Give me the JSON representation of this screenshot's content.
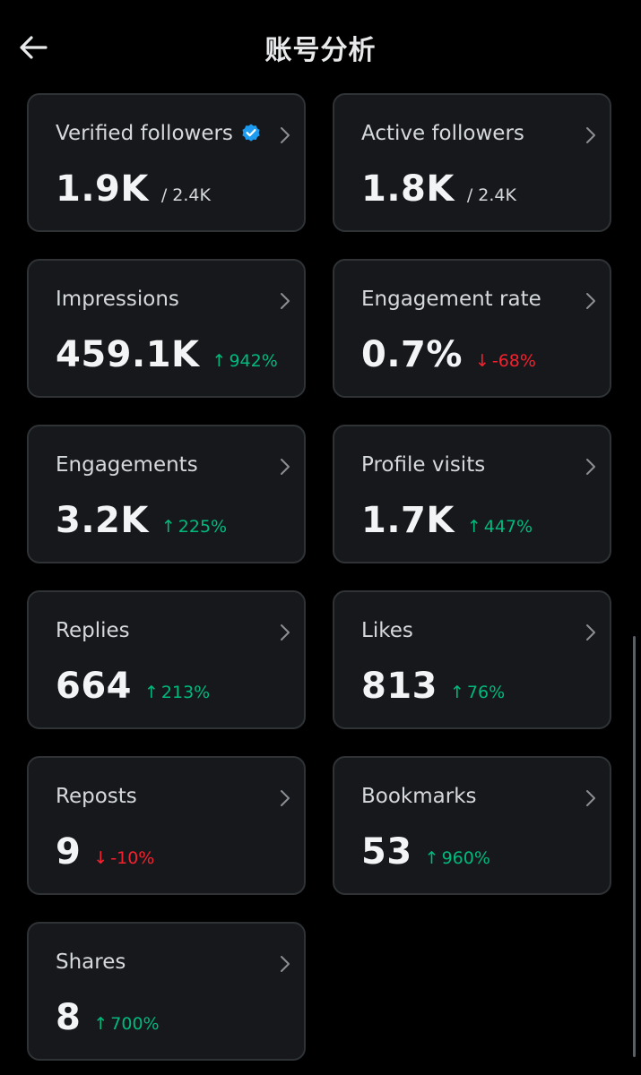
{
  "header": {
    "title": "账号分析",
    "back_icon": "arrow-left-icon"
  },
  "colors": {
    "background": "#000000",
    "card": "#16181c",
    "card_border": "#2f3336",
    "up": "#00ba7c",
    "down": "#f4212e",
    "verified": "#1d9bf0"
  },
  "cards": [
    {
      "label": "Verified followers",
      "value": "1.9K",
      "sub": "/ 2.4K",
      "verified_icon": "verified-badge-icon"
    },
    {
      "label": "Active followers",
      "value": "1.8K",
      "sub": "/ 2.4K"
    },
    {
      "label": "Impressions",
      "value": "459.1K",
      "delta": "942%",
      "direction": "up",
      "arrow": "↑"
    },
    {
      "label": "Engagement rate",
      "value": "0.7%",
      "delta": "-68%",
      "direction": "down",
      "arrow": "↓"
    },
    {
      "label": "Engagements",
      "value": "3.2K",
      "delta": "225%",
      "direction": "up",
      "arrow": "↑"
    },
    {
      "label": "Profile visits",
      "value": "1.7K",
      "delta": "447%",
      "direction": "up",
      "arrow": "↑"
    },
    {
      "label": "Replies",
      "value": "664",
      "delta": "213%",
      "direction": "up",
      "arrow": "↑"
    },
    {
      "label": "Likes",
      "value": "813",
      "delta": "76%",
      "direction": "up",
      "arrow": "↑"
    },
    {
      "label": "Reposts",
      "value": "9",
      "delta": "-10%",
      "direction": "down",
      "arrow": "↓"
    },
    {
      "label": "Bookmarks",
      "value": "53",
      "delta": "960%",
      "direction": "up",
      "arrow": "↑"
    },
    {
      "label": "Shares",
      "value": "8",
      "delta": "700%",
      "direction": "up",
      "arrow": "↑"
    }
  ]
}
